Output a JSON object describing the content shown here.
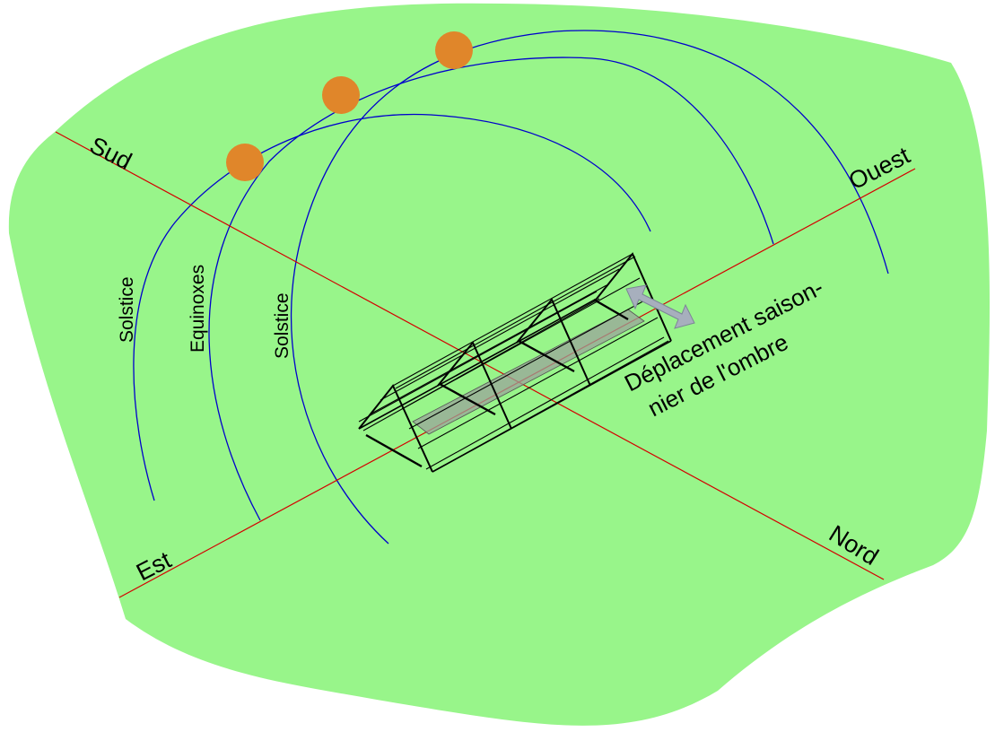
{
  "diagram": {
    "colors": {
      "ground": "#98f58a",
      "axis": "#d40000",
      "sun_path": "#0000cc",
      "sun": "#e0862a",
      "arrow": "#a7afbd",
      "structure": "#000000",
      "shadow": "#9aa39a"
    },
    "cardinals": {
      "south": "Sud",
      "west": "Ouest",
      "east": "Est",
      "north": "Nord"
    },
    "sun_paths": {
      "left": "Solstice",
      "middle": "Equinoxes",
      "right": "Solstice"
    },
    "caption": {
      "line1": "Déplacement saison-",
      "line2": "nier de l'ombre"
    },
    "icons": {
      "sun": "sun-icon",
      "arrow": "double-arrow-icon",
      "structure": "greenhouse-frame-icon"
    }
  }
}
